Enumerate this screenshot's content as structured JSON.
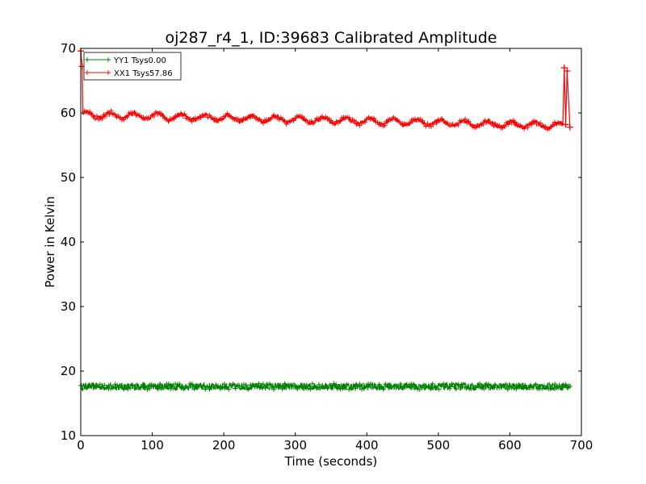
{
  "chart_data": {
    "type": "line",
    "title": "oj287_r4_1, ID:39683 Calibrated Amplitude",
    "xlabel": "Time (seconds)",
    "ylabel": "Power in Kelvin",
    "xlim": [
      0,
      700
    ],
    "ylim": [
      10,
      70
    ],
    "xticks": [
      0,
      100,
      200,
      300,
      400,
      500,
      600,
      700
    ],
    "yticks": [
      10,
      20,
      30,
      40,
      50,
      60,
      70
    ],
    "grid": false,
    "legend_position": "top-left",
    "series": [
      {
        "name": "YY1 Tsys0.00",
        "color": "#008000",
        "marker": "plus",
        "time_range": [
          0,
          685
        ],
        "mean": 17.6,
        "noise_amplitude": 0.6
      },
      {
        "name": "XX1 Tsys57.86",
        "color": "#ff0000",
        "marker": "plus",
        "time_range": [
          5,
          685
        ],
        "baseline_start": 59.7,
        "baseline_end": 58.0,
        "oscillation_amplitude": 0.45,
        "oscillation_period_s": 33,
        "spikes": [
          {
            "x": 0,
            "y": 69.6
          },
          {
            "x": 2,
            "y": 67.2
          },
          {
            "x": 676,
            "y": 67.0
          },
          {
            "x": 678,
            "y": 58.2
          },
          {
            "x": 680,
            "y": 66.5
          },
          {
            "x": 684,
            "y": 57.8
          }
        ]
      }
    ]
  }
}
